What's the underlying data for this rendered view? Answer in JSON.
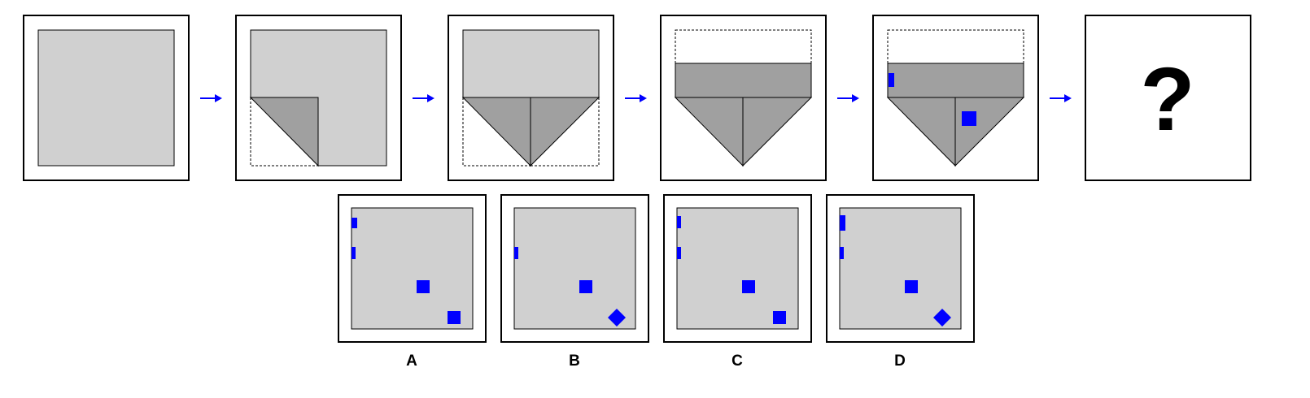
{
  "puzzle": {
    "question_mark": "?",
    "options": [
      {
        "label": "A"
      },
      {
        "label": "B"
      },
      {
        "label": "C"
      },
      {
        "label": "D"
      }
    ]
  },
  "colors": {
    "paper": "#d0d0d0",
    "fold": "#a0a0a0",
    "hole": "#0000ff",
    "arrow": "#0000ff",
    "frame": "#000000",
    "frame_fill": "#ffffff"
  }
}
